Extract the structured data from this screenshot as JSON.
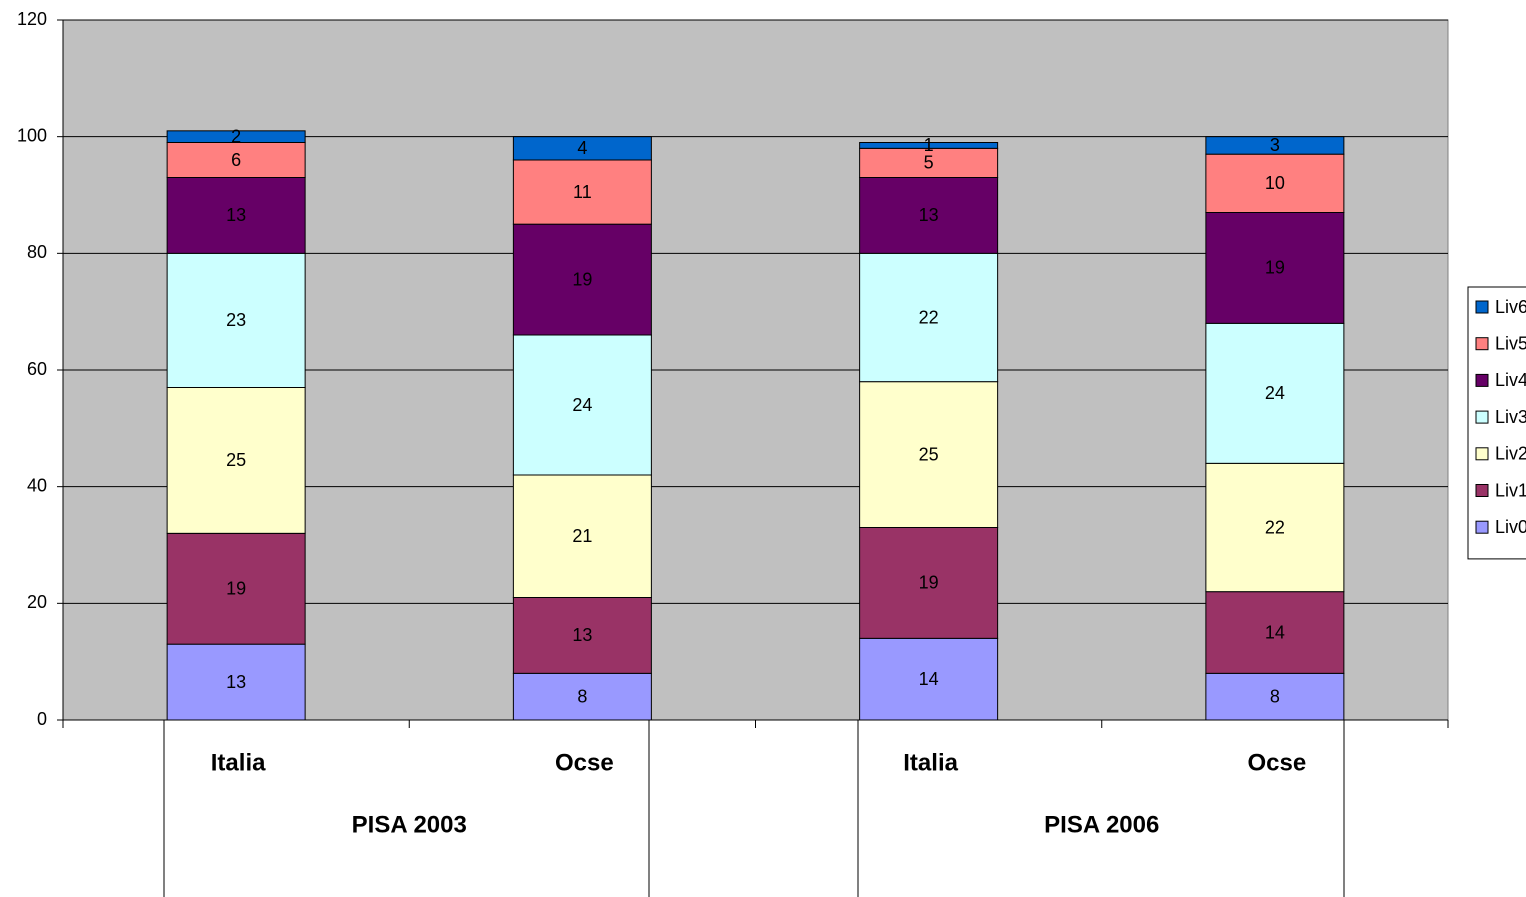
{
  "chart_data": {
    "type": "stacked_bar",
    "categories": [
      "Italia",
      "Ocse",
      "Italia",
      "Ocse"
    ],
    "groups": [
      {
        "label": "PISA 2003",
        "span": [
          0,
          1
        ]
      },
      {
        "label": "PISA 2006",
        "span": [
          2,
          3
        ]
      }
    ],
    "series": [
      {
        "name": "Liv0",
        "color": "#9999ff",
        "values": [
          13,
          8,
          14,
          8
        ]
      },
      {
        "name": "Liv1",
        "color": "#993366",
        "values": [
          19,
          13,
          19,
          14
        ]
      },
      {
        "name": "Liv2",
        "color": "#ffffcc",
        "values": [
          25,
          21,
          25,
          22
        ]
      },
      {
        "name": "Liv3",
        "color": "#ccffff",
        "values": [
          23,
          24,
          22,
          24
        ]
      },
      {
        "name": "Liv4",
        "color": "#660066",
        "values": [
          13,
          19,
          13,
          19
        ]
      },
      {
        "name": "Liv5",
        "color": "#ff8080",
        "values": [
          6,
          11,
          5,
          10
        ]
      },
      {
        "name": "Liv6",
        "color": "#0066cc",
        "values": [
          2,
          4,
          1,
          3
        ]
      }
    ],
    "ylim": [
      0,
      120
    ],
    "yticks": [
      0,
      20,
      40,
      60,
      80,
      100,
      120
    ],
    "grid": true,
    "legend": "right"
  }
}
